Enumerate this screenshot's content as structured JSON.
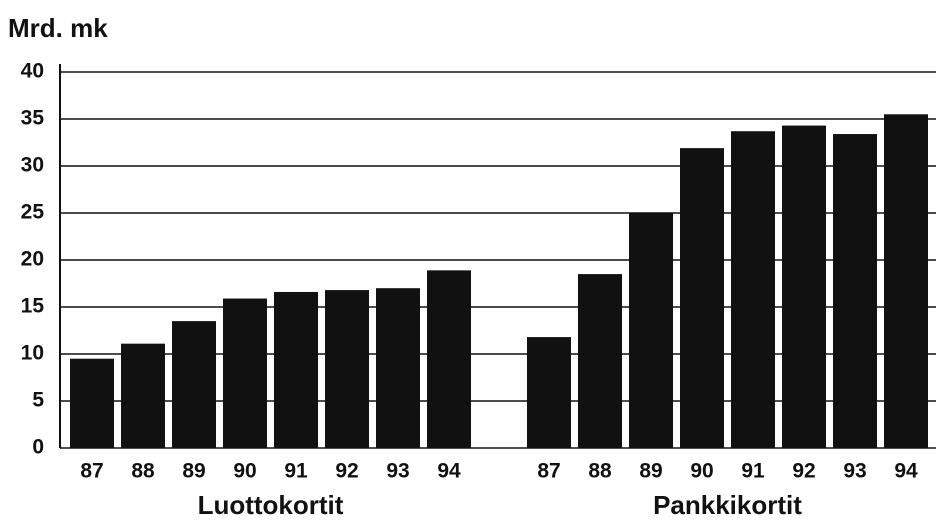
{
  "chart_data": {
    "type": "bar",
    "y_label": "Mrd. mk",
    "groups": [
      {
        "name": "Luottokortit",
        "categories": [
          "87",
          "88",
          "89",
          "90",
          "91",
          "92",
          "93",
          "94"
        ],
        "values": [
          9.5,
          11.1,
          13.5,
          15.9,
          16.6,
          16.8,
          17,
          18.9
        ]
      },
      {
        "name": "Pankkikortit",
        "categories": [
          "87",
          "88",
          "89",
          "90",
          "91",
          "92",
          "93",
          "94"
        ],
        "values": [
          11.8,
          18.5,
          25,
          31.9,
          33.7,
          34.3,
          33.4,
          35.5
        ]
      }
    ],
    "color": "#111111",
    "ylim": [
      0,
      40
    ],
    "yticks": [
      0,
      5,
      10,
      15,
      20,
      25,
      30,
      35,
      40
    ],
    "grid": true
  }
}
